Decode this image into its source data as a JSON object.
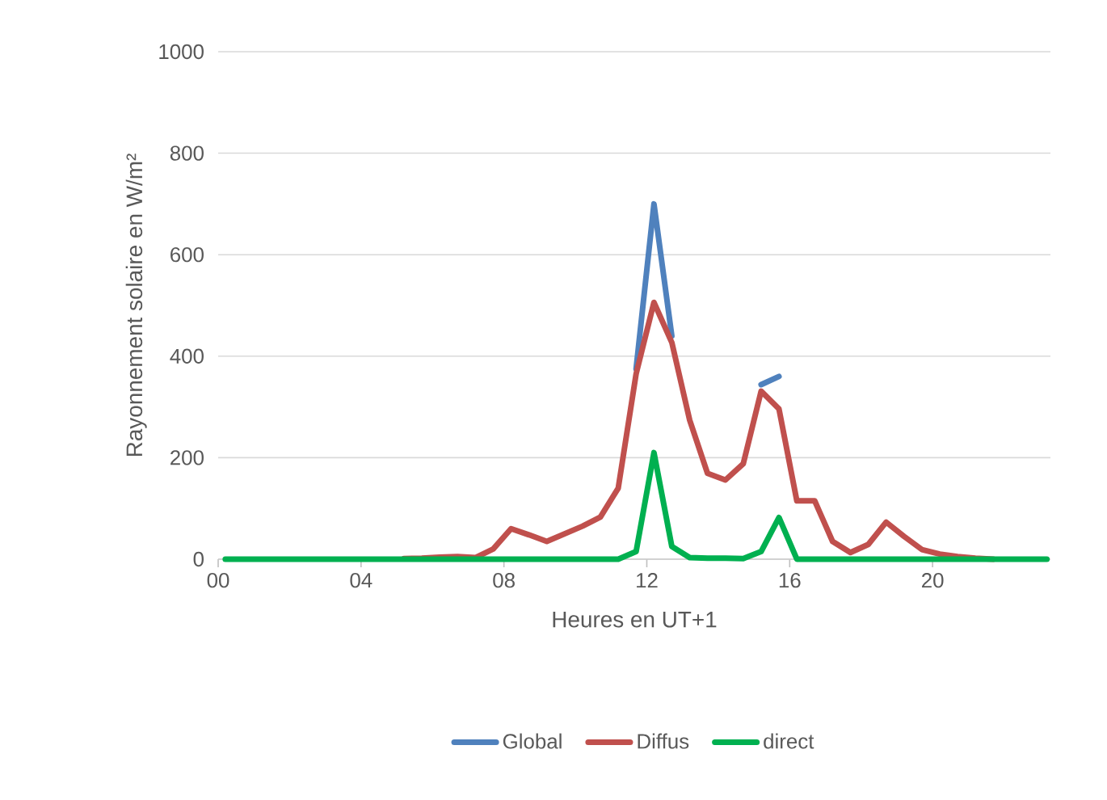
{
  "chart_data": {
    "type": "line",
    "xlabel": "Heures en UT+1",
    "ylabel": "Rayonnement solaire en W/m²",
    "x": [
      0.2,
      0.7,
      1.2,
      1.7,
      2.2,
      2.7,
      3.2,
      3.7,
      4.2,
      4.7,
      5.2,
      5.7,
      6.2,
      6.7,
      7.2,
      7.7,
      8.2,
      8.7,
      9.2,
      9.7,
      10.2,
      10.7,
      11.2,
      11.7,
      12.2,
      12.7,
      13.2,
      13.7,
      14.2,
      14.7,
      15.2,
      15.7,
      16.2,
      16.7,
      17.2,
      17.7,
      18.2,
      18.7,
      19.2,
      19.7,
      20.2,
      20.7,
      21.2,
      21.7,
      22.2,
      22.7,
      23.2
    ],
    "series": [
      {
        "name": "Global",
        "color": "#4f81bd",
        "values": [
          null,
          null,
          null,
          null,
          null,
          null,
          null,
          null,
          null,
          null,
          null,
          null,
          null,
          null,
          null,
          null,
          null,
          null,
          null,
          null,
          null,
          null,
          null,
          375,
          700,
          440,
          null,
          null,
          null,
          null,
          344,
          360,
          null,
          null,
          null,
          null,
          null,
          null,
          null,
          null,
          null,
          null,
          null,
          null,
          null,
          null,
          null
        ]
      },
      {
        "name": "Diffus",
        "color": "#c0504d",
        "values": [
          null,
          null,
          null,
          null,
          null,
          null,
          null,
          null,
          null,
          null,
          1,
          2,
          4,
          5,
          3,
          20,
          60,
          48,
          35,
          50,
          65,
          83,
          140,
          365,
          506,
          427,
          274,
          169,
          156,
          188,
          331,
          296,
          115,
          115,
          35,
          13,
          29,
          73,
          45,
          19,
          10,
          5,
          2,
          0,
          null,
          null,
          null
        ]
      },
      {
        "name": "direct",
        "color": "#00b050",
        "values": [
          0,
          0,
          0,
          0,
          0,
          0,
          0,
          0,
          0,
          0,
          0,
          0,
          0,
          0,
          0,
          0,
          0,
          0,
          0,
          0,
          0,
          0,
          0,
          15,
          210,
          25,
          3,
          2,
          2,
          1,
          15,
          82,
          0,
          0,
          0,
          0,
          0,
          0,
          0,
          0,
          0,
          0,
          0,
          0,
          0,
          0,
          0
        ]
      }
    ],
    "xlim": [
      0,
      23.3
    ],
    "xticks": [
      {
        "value": 0,
        "label": "00"
      },
      {
        "value": 4,
        "label": "04"
      },
      {
        "value": 8,
        "label": "08"
      },
      {
        "value": 12,
        "label": "12"
      },
      {
        "value": 16,
        "label": "16"
      },
      {
        "value": 20,
        "label": "20"
      }
    ],
    "ylim": [
      0,
      1000
    ],
    "yticks": [
      0,
      200,
      400,
      600,
      800,
      1000
    ],
    "grid": "y",
    "legend": "bottom",
    "marker": "none",
    "line_style": "solid"
  }
}
